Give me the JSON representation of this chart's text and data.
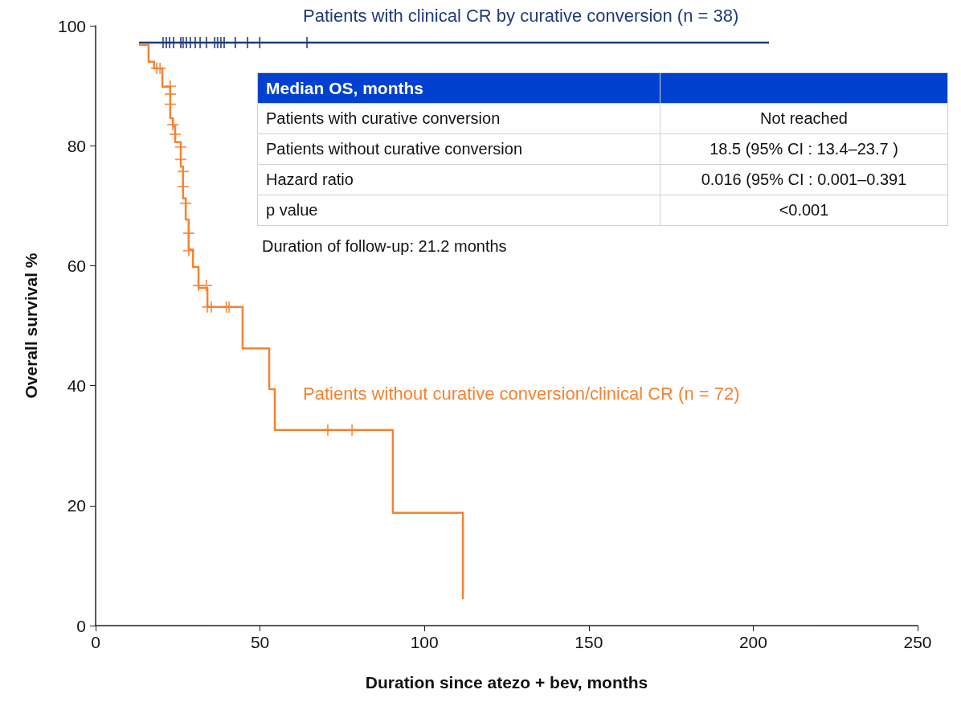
{
  "chart_data": {
    "type": "step",
    "xlabel": "Duration since atezo + bev, months",
    "ylabel": "Overall survival %",
    "xlim": [
      0,
      250
    ],
    "xticks": [
      0,
      50,
      100,
      150,
      200,
      250
    ],
    "ylim": [
      0,
      100
    ],
    "yticks": [
      0,
      20,
      40,
      60,
      80,
      100
    ],
    "grid": false,
    "legend": false,
    "series": [
      {
        "name": "Patients with clinical CR by curative conversion (n = 38)",
        "color": "#1f3a7a",
        "x": [
          13.2,
          204.8
        ],
        "values": [
          97.2,
          97.2
        ]
      },
      {
        "type": "scatter",
        "marker": "cross",
        "color": "#1f3a7a",
        "x": [
          20.5,
          21.5,
          22.5,
          23.7,
          25.9,
          26.6,
          27.6,
          28.8,
          30.3,
          31.8,
          33.7,
          36.2,
          37.1,
          38.1,
          39.1,
          42.5,
          46.2,
          49.9,
          64.3
        ],
        "values": [
          97.2,
          97.2,
          97.2,
          97.2,
          97.2,
          97.2,
          97.2,
          97.2,
          97.2,
          97.2,
          97.2,
          97.2,
          97.2,
          97.2,
          97.2,
          97.2,
          97.2,
          97.2,
          97.2
        ]
      },
      {
        "name": "Patients without curative conversion/clinical CR (n = 72)",
        "color": "#f58231",
        "x": [
          13.2,
          16.1,
          17.8,
          20.3,
          22.7,
          23.5,
          24.2,
          25.9,
          26.6,
          27.4,
          28.3,
          29.6,
          31.3,
          34.0,
          44.7,
          52.8,
          54.5,
          90.4,
          111.7
        ],
        "values": [
          96.8,
          94.0,
          92.9,
          89.8,
          84.6,
          83.2,
          80.6,
          76.5,
          71.2,
          67.7,
          62.7,
          59.8,
          56.3,
          53.1,
          46.2,
          39.4,
          32.6,
          18.8,
          4.4
        ]
      },
      {
        "type": "scatter",
        "marker": "cross",
        "color": "#f58231",
        "x": [
          18.6,
          19.6,
          22.7,
          22.7,
          22.7,
          23.5,
          24.2,
          25.9,
          25.9,
          26.6,
          26.6,
          27.4,
          28.3,
          28.3,
          31.3,
          33.7,
          34.0,
          35.2,
          39.8,
          40.6,
          70.6,
          78.0
        ],
        "values": [
          92.9,
          92.9,
          89.9,
          88.6,
          86.9,
          83.5,
          81.9,
          79.8,
          77.7,
          75.7,
          73.2,
          70.4,
          65.4,
          62.5,
          56.7,
          56.7,
          53.1,
          53.1,
          53.1,
          53.1,
          32.6,
          32.6
        ]
      }
    ],
    "annotations": [
      "Median OS, months",
      "Patients with curative conversion",
      "Not reached",
      "Patients without curative conversion",
      "18.5 (95% CI : 13.4–23.7 )",
      "Hazard ratio",
      "0.016 (95% CI : 0.001–0.391",
      "p value",
      "<0.001",
      "Duration of follow-up: 21.2 months"
    ]
  }
}
